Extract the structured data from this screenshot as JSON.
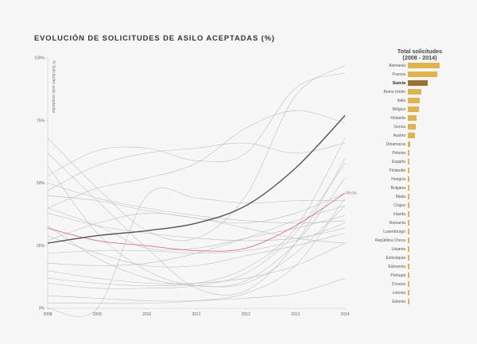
{
  "title": "EVOLUCIÓN DE SOLICITUDES DE ASILO ACEPTADAS (%)",
  "sidebar": {
    "title_line1": "Total solicitudes",
    "title_line2": "(2008 - 2014)"
  },
  "chart_data": [
    {
      "type": "line",
      "title": "EVOLUCIÓN DE SOLICITUDES DE ASILO ACEPTADAS (%)",
      "ylabel": "% Solicitudes asilo aceptadas",
      "x": [
        "2008",
        "2009",
        "2010",
        "2011",
        "2012",
        "2013",
        "2014"
      ],
      "ylim": [
        0,
        100
      ],
      "yticks": [
        "0%",
        "25%",
        "50%",
        "75%",
        "100%"
      ],
      "grid": false,
      "colors": {
        "highlight": "#555555",
        "media": "#e07080",
        "other": "#bbbbbb"
      },
      "series": [
        {
          "name": "Suecia",
          "highlight": true,
          "values": [
            26,
            29,
            31,
            34,
            41,
            56,
            77
          ]
        },
        {
          "name": "Media",
          "media": true,
          "values": [
            32,
            27,
            25,
            23,
            24,
            33,
            46
          ]
        },
        {
          "values": [
            53,
            63,
            64,
            59,
            62,
            88,
            94
          ]
        },
        {
          "values": [
            68,
            48,
            31,
            28,
            45,
            85,
            97
          ]
        },
        {
          "values": [
            62,
            43,
            24,
            8,
            7,
            26,
            60
          ]
        },
        {
          "values": [
            47,
            57,
            62,
            64,
            66,
            62,
            66
          ]
        },
        {
          "values": [
            40,
            48,
            52,
            58,
            72,
            79,
            74
          ]
        },
        {
          "values": [
            45,
            43,
            39,
            36,
            34,
            38,
            46
          ]
        },
        {
          "values": [
            50,
            44,
            40,
            37,
            35,
            34,
            35
          ]
        },
        {
          "values": [
            38,
            33,
            30,
            28,
            27,
            28,
            32
          ]
        },
        {
          "values": [
            22,
            23,
            23,
            22,
            23,
            27,
            34
          ]
        },
        {
          "values": [
            15,
            12,
            10,
            10,
            12,
            17,
            26
          ]
        },
        {
          "values": [
            12,
            10,
            9,
            10,
            16,
            32,
            68
          ]
        },
        {
          "values": [
            10,
            8,
            8,
            9,
            14,
            30,
            58
          ]
        },
        {
          "values": [
            2,
            2,
            2,
            3,
            6,
            17,
            44
          ]
        },
        {
          "values": [
            5,
            4,
            3,
            3,
            4,
            6,
            12
          ]
        },
        {
          "values": [
            33,
            20,
            12,
            9,
            10,
            22,
            41
          ]
        },
        {
          "values": [
            57,
            30,
            15,
            9,
            11,
            26,
            52
          ]
        },
        {
          "values": [
            0,
            0,
            45,
            44,
            42,
            43,
            43
          ]
        },
        {
          "values": [
            27,
            34,
            38,
            36,
            32,
            28,
            26
          ]
        },
        {
          "values": [
            40,
            33,
            24,
            24,
            28,
            32,
            37
          ]
        },
        {
          "values": [
            29,
            22,
            17,
            17,
            21,
            25,
            30
          ]
        },
        {
          "values": [
            18,
            17,
            18,
            22,
            28,
            35,
            41
          ]
        }
      ]
    },
    {
      "type": "bar",
      "title": "Total solicitudes (2008 - 2014)",
      "orientation": "horizontal",
      "categories": [
        "Alemania",
        "Francia",
        "Suecia",
        "Reino Unido",
        "Italia",
        "Bélgica",
        "Holanda",
        "Grecia",
        "Austria",
        "Dinamarca",
        "Polonia",
        "España",
        "Finlandia",
        "Hungría",
        "Bulgaria",
        "Malta",
        "Chipre",
        "Irlanda",
        "Rumanía",
        "Luxemburgo",
        "República Checa",
        "Lituania",
        "Eslovaquia",
        "Eslovenia",
        "Portugal",
        "Croacia",
        "Letonia",
        "Estonia"
      ],
      "values": [
        100,
        92,
        62,
        42,
        37,
        35,
        27,
        24,
        23,
        7,
        5,
        4,
        2,
        2,
        2,
        2,
        1.5,
        1.5,
        1.2,
        1,
        1,
        0.6,
        0.5,
        0.4,
        0.3,
        0.3,
        0.2,
        0.2
      ],
      "highlight": "Suecia",
      "colors": {
        "bar": "#e3b24a",
        "highlight": "#9b7530"
      }
    }
  ]
}
